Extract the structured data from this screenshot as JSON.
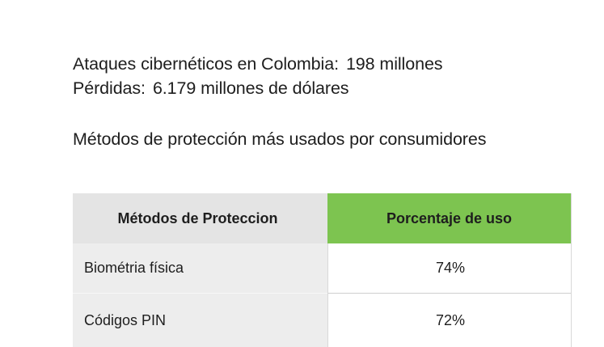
{
  "stats": [
    {
      "label": "Ataques cibernéticos en Colombia:",
      "value": "198 millones"
    },
    {
      "label": "Pérdidas:",
      "value": "6.179 millones de dólares"
    }
  ],
  "subtitle": "Métodos de protección más usados por consumidores",
  "table": {
    "headers": [
      "Métodos de Proteccion",
      "Porcentaje de uso"
    ],
    "rows": [
      {
        "method": "Biométria física",
        "percent": "74%"
      },
      {
        "method": "Códigos PIN",
        "percent": "72%"
      }
    ]
  },
  "colors": {
    "header_left": "#e4e4e4",
    "header_right_accent": "#7dc450",
    "row_left": "#ededed"
  }
}
